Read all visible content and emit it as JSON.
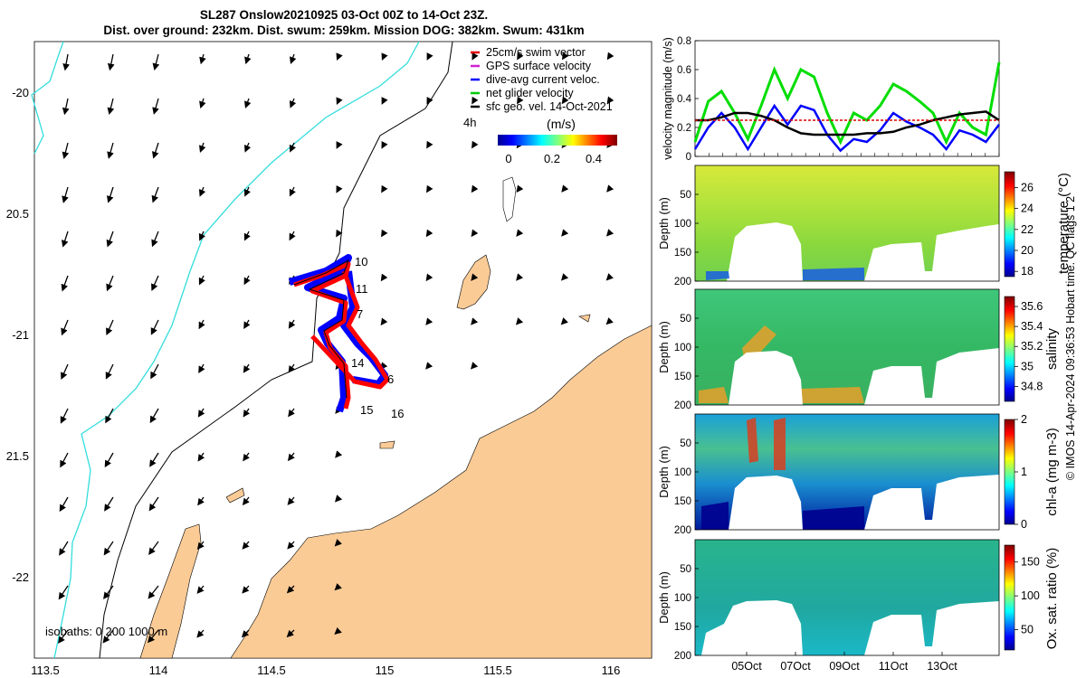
{
  "title": {
    "line1": "SL287 Onslow20210925 03-Oct 00Z to 14-Oct 23Z.",
    "line2": "Dist. over ground: 232km. Dist. swum: 259km. Mission DOG: 382km. Swum: 431km"
  },
  "map": {
    "lon_ticks": [
      "113.5",
      "114",
      "114.5",
      "115",
      "115.5",
      "116"
    ],
    "lat_ticks": [
      "-20",
      "20.5",
      "-21",
      "21.5",
      "-22"
    ],
    "legend": [
      {
        "label": "25cm/s swim vector",
        "color": "#e00000"
      },
      {
        "label": "GPS surface velocity",
        "color": "#d020d0"
      },
      {
        "label": "dive-avg current veloc.",
        "color": "#0000ff"
      },
      {
        "label": "net glider velocity",
        "color": "#00cc00"
      },
      {
        "label": "sfc geo. vel. 14-Oct-2021",
        "color": "#000000"
      }
    ],
    "colorbar_label": "(m/s)",
    "colorbar_side_label": "4h",
    "colorbar_ticks": [
      "0",
      "0.2",
      "0.4"
    ],
    "isobaths_label": "isobaths: 0 200 1000 m",
    "day_labels": [
      "10",
      "11",
      "7",
      "6",
      "14",
      "15",
      "16"
    ],
    "colors": {
      "land": "#fbcb96",
      "coast_isobath": "#33dddd",
      "track_a": "#ff0000",
      "track_b": "#0000ff"
    }
  },
  "velocity_panel": {
    "ylabel": "velocity magnitude (m/s)",
    "y_ticks": [
      "0",
      "0.2",
      "0.4",
      "0.6",
      "0.8"
    ]
  },
  "sections": [
    {
      "quantity": "temperature (°C)",
      "ylabel": "Depth (m)",
      "cbar_ticks": [
        "18",
        "20",
        "22",
        "24",
        "26"
      ]
    },
    {
      "quantity": "salinity",
      "ylabel": "Depth (m)",
      "cbar_ticks": [
        "34.8",
        "35",
        "35.2",
        "35.4",
        "35.6"
      ]
    },
    {
      "quantity": "chl-a (mg m-3)",
      "ylabel": "Depth (m)",
      "cbar_ticks": [
        "0",
        "1",
        "2"
      ]
    },
    {
      "quantity": "Ox. sat. ratio (%)",
      "ylabel": "Depth (m)",
      "cbar_ticks": [
        "50",
        "100",
        "150"
      ]
    }
  ],
  "depth_ticks": [
    "50",
    "100",
    "150",
    "200"
  ],
  "date_ticks": [
    "05Oct",
    "07Oct",
    "09Oct",
    "11Oct",
    "13Oct"
  ],
  "credit": "© IMOS 14-Apr-2024 09:36:53 Hobart time. QC flags 1  2",
  "chart_data": [
    {
      "type": "line",
      "title": "",
      "xlabel": "",
      "ylabel": "velocity magnitude (m/s)",
      "ylim": [
        0,
        0.8
      ],
      "x": [
        0,
        0.5,
        1,
        1.5,
        2,
        2.5,
        3,
        3.5,
        4,
        4.5,
        5,
        5.5,
        6,
        6.5,
        7,
        7.5,
        8,
        8.5,
        9,
        9.5,
        10,
        10.5,
        11,
        11.5
      ],
      "series": [
        {
          "name": "net glider velocity",
          "values": [
            0.1,
            0.38,
            0.45,
            0.3,
            0.12,
            0.35,
            0.6,
            0.4,
            0.6,
            0.55,
            0.3,
            0.1,
            0.3,
            0.25,
            0.35,
            0.5,
            0.45,
            0.38,
            0.3,
            0.1,
            0.3,
            0.2,
            0.15,
            0.65
          ]
        },
        {
          "name": "dive-avg current veloc.",
          "values": [
            0.05,
            0.2,
            0.3,
            0.2,
            0.05,
            0.2,
            0.35,
            0.22,
            0.35,
            0.32,
            0.15,
            0.04,
            0.12,
            0.1,
            0.18,
            0.3,
            0.24,
            0.2,
            0.15,
            0.05,
            0.18,
            0.15,
            0.1,
            0.22
          ]
        },
        {
          "name": "sfc geo. vel. 14-Oct-2021",
          "values": [
            0.25,
            0.25,
            0.27,
            0.3,
            0.3,
            0.28,
            0.25,
            0.2,
            0.16,
            0.15,
            0.15,
            0.15,
            0.15,
            0.16,
            0.16,
            0.17,
            0.2,
            0.22,
            0.25,
            0.27,
            0.29,
            0.3,
            0.31,
            0.25
          ]
        },
        {
          "name": "25cm/s swim vector",
          "values": [
            0.25,
            0.25,
            0.25,
            0.25,
            0.25,
            0.25,
            0.25,
            0.25,
            0.25,
            0.25,
            0.25,
            0.25,
            0.25,
            0.25,
            0.25,
            0.25,
            0.25,
            0.25,
            0.25,
            0.25,
            0.25,
            0.25,
            0.25,
            0.25
          ]
        }
      ]
    },
    {
      "type": "heatmap",
      "ylabel": "Depth (m)",
      "colorbar": "temperature (°C)",
      "clim": [
        18,
        27
      ],
      "ylim": [
        200,
        0
      ]
    },
    {
      "type": "heatmap",
      "ylabel": "Depth (m)",
      "colorbar": "salinity",
      "clim": [
        34.7,
        35.7
      ],
      "ylim": [
        200,
        0
      ]
    },
    {
      "type": "heatmap",
      "ylabel": "Depth (m)",
      "colorbar": "chl-a (mg m-3)",
      "clim": [
        0,
        2
      ],
      "ylim": [
        200,
        0
      ]
    },
    {
      "type": "heatmap",
      "ylabel": "Depth (m)",
      "colorbar": "Ox. sat. ratio (%)",
      "clim": [
        20,
        175
      ],
      "ylim": [
        200,
        0
      ]
    }
  ]
}
